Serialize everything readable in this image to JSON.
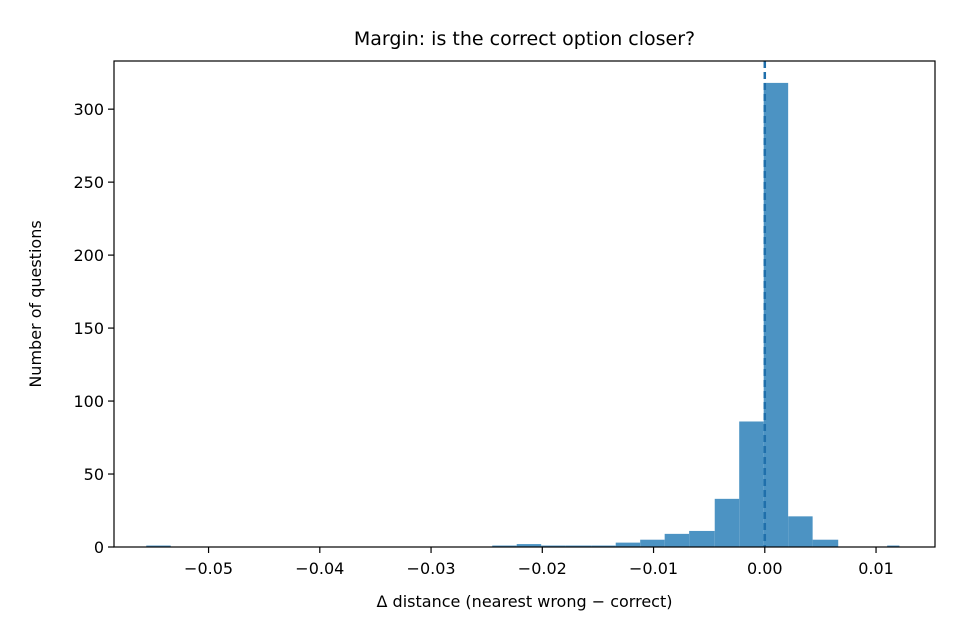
{
  "chart_data": {
    "type": "bar",
    "title": "Margin: is the correct option closer?",
    "xlabel": "Δ distance  (nearest wrong − correct)",
    "ylabel": "Number of questions",
    "xlim": [
      -0.0585,
      0.0153
    ],
    "ylim": [
      0,
      333
    ],
    "xticks": [
      -0.05,
      -0.04,
      -0.03,
      -0.02,
      -0.01,
      0.0,
      0.01
    ],
    "xtick_labels": [
      "−0.05",
      "−0.04",
      "−0.03",
      "−0.02",
      "−0.01",
      "0.00",
      "0.01"
    ],
    "yticks": [
      0,
      50,
      100,
      150,
      200,
      250,
      300
    ],
    "ytick_labels": [
      "0",
      "50",
      "100",
      "150",
      "200",
      "250",
      "300"
    ],
    "bin_edges": [
      -0.0556,
      -0.0534,
      -0.0512,
      -0.0489,
      -0.0467,
      -0.0445,
      -0.0423,
      -0.0401,
      -0.0378,
      -0.0356,
      -0.0334,
      -0.0312,
      -0.029,
      -0.0267,
      -0.0245,
      -0.0223,
      -0.0201,
      -0.0179,
      -0.0156,
      -0.0134,
      -0.0112,
      -0.009,
      -0.0068,
      -0.0045,
      -0.0023,
      -0.0001,
      0.0021,
      0.0043,
      0.0066,
      0.0088,
      0.011,
      0.0121
    ],
    "values": [
      1,
      0,
      0,
      0,
      0,
      0,
      0,
      0,
      0,
      0,
      0,
      0,
      0,
      0,
      1,
      2,
      1,
      1,
      1,
      3,
      5,
      9,
      11,
      33,
      86,
      318,
      21,
      5,
      0,
      0,
      1
    ],
    "bar_color": "#4c93c3",
    "reference_line": {
      "x": 0.0,
      "style": "dashed",
      "color": "#1f6fab"
    },
    "grid": false,
    "legend": "none"
  }
}
